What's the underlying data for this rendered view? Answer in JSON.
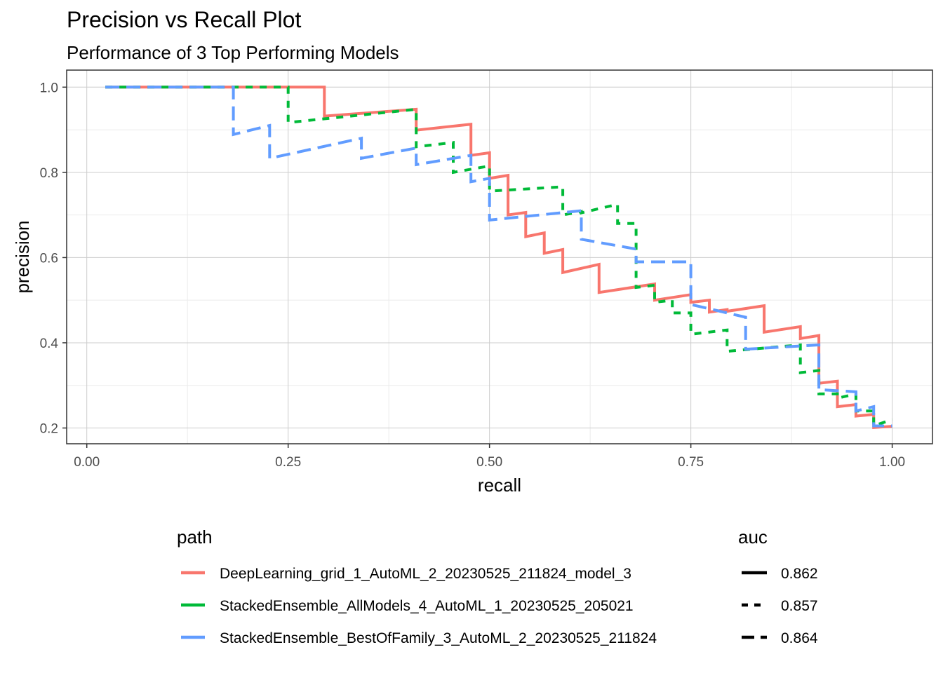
{
  "chart_data": {
    "type": "line",
    "title": "Precision vs Recall Plot",
    "subtitle": "Performance of 3 Top Performing Models",
    "xlabel": "recall",
    "ylabel": "precision",
    "xlim": [
      -0.025,
      1.05
    ],
    "ylim": [
      0.163,
      1.04
    ],
    "x_ticks": [
      0,
      0.25,
      0.5,
      0.75,
      1
    ],
    "x_tick_labels": [
      "0.00",
      "0.25",
      "0.50",
      "0.75",
      "1.00"
    ],
    "y_ticks": [
      0.2,
      0.4,
      0.6,
      0.8,
      1.0
    ],
    "y_tick_labels": [
      "0.2",
      "0.4",
      "0.6",
      "0.8",
      "1.0"
    ],
    "grid": true,
    "legend_position": "bottom",
    "legend_titles": {
      "color": "path",
      "linetype": "auc"
    },
    "series": [
      {
        "name": "DeepLearning_grid_1_AutoML_2_20230525_211824_model_3",
        "auc": "0.862",
        "color": "#F8766D",
        "linetype": "solid",
        "points": [
          [
            0.023,
            1.0
          ],
          [
            0.295,
            1.0
          ],
          [
            0.295,
            0.932
          ],
          [
            0.409,
            0.948
          ],
          [
            0.409,
            0.899
          ],
          [
            0.477,
            0.913
          ],
          [
            0.477,
            0.84
          ],
          [
            0.5,
            0.846
          ],
          [
            0.5,
            0.786
          ],
          [
            0.523,
            0.793
          ],
          [
            0.523,
            0.7
          ],
          [
            0.545,
            0.706
          ],
          [
            0.545,
            0.649
          ],
          [
            0.568,
            0.658
          ],
          [
            0.568,
            0.61
          ],
          [
            0.591,
            0.619
          ],
          [
            0.591,
            0.565
          ],
          [
            0.636,
            0.584
          ],
          [
            0.636,
            0.518
          ],
          [
            0.705,
            0.538
          ],
          [
            0.705,
            0.5
          ],
          [
            0.75,
            0.513
          ],
          [
            0.75,
            0.495
          ],
          [
            0.773,
            0.5
          ],
          [
            0.773,
            0.472
          ],
          [
            0.795,
            0.478
          ],
          [
            0.795,
            0.474
          ],
          [
            0.841,
            0.487
          ],
          [
            0.841,
            0.425
          ],
          [
            0.886,
            0.438
          ],
          [
            0.886,
            0.41
          ],
          [
            0.909,
            0.417
          ],
          [
            0.909,
            0.305
          ],
          [
            0.932,
            0.31
          ],
          [
            0.932,
            0.25
          ],
          [
            0.955,
            0.255
          ],
          [
            0.955,
            0.228
          ],
          [
            0.977,
            0.232
          ],
          [
            0.977,
            0.201
          ],
          [
            1.0,
            0.204
          ]
        ]
      },
      {
        "name": "StackedEnsemble_AllModels_4_AutoML_1_20230525_205021",
        "auc": "0.857",
        "color": "#00BA38",
        "linetype": "dashed",
        "points": [
          [
            0.023,
            1.0
          ],
          [
            0.25,
            1.0
          ],
          [
            0.25,
            0.917
          ],
          [
            0.409,
            0.948
          ],
          [
            0.409,
            0.86
          ],
          [
            0.455,
            0.87
          ],
          [
            0.455,
            0.8
          ],
          [
            0.5,
            0.815
          ],
          [
            0.5,
            0.756
          ],
          [
            0.591,
            0.766
          ],
          [
            0.591,
            0.7
          ],
          [
            0.614,
            0.708
          ],
          [
            0.614,
            0.705
          ],
          [
            0.659,
            0.725
          ],
          [
            0.659,
            0.68
          ],
          [
            0.682,
            0.68
          ],
          [
            0.682,
            0.53
          ],
          [
            0.705,
            0.535
          ],
          [
            0.705,
            0.495
          ],
          [
            0.727,
            0.5
          ],
          [
            0.727,
            0.47
          ],
          [
            0.75,
            0.47
          ],
          [
            0.75,
            0.42
          ],
          [
            0.795,
            0.43
          ],
          [
            0.795,
            0.38
          ],
          [
            0.886,
            0.395
          ],
          [
            0.886,
            0.33
          ],
          [
            0.909,
            0.335
          ],
          [
            0.909,
            0.28
          ],
          [
            0.932,
            0.28
          ],
          [
            0.932,
            0.27
          ],
          [
            0.955,
            0.28
          ],
          [
            0.955,
            0.24
          ],
          [
            0.977,
            0.24
          ],
          [
            0.977,
            0.205
          ],
          [
            1.0,
            0.22
          ]
        ]
      },
      {
        "name": "StackedEnsemble_BestOfFamily_3_AutoML_2_20230525_211824",
        "auc": "0.864",
        "color": "#619CFF",
        "linetype": "longdash",
        "points": [
          [
            0.023,
            1.0
          ],
          [
            0.182,
            1.0
          ],
          [
            0.182,
            0.889
          ],
          [
            0.227,
            0.91
          ],
          [
            0.227,
            0.833
          ],
          [
            0.341,
            0.88
          ],
          [
            0.341,
            0.833
          ],
          [
            0.409,
            0.857
          ],
          [
            0.409,
            0.818
          ],
          [
            0.477,
            0.84
          ],
          [
            0.477,
            0.778
          ],
          [
            0.5,
            0.786
          ],
          [
            0.5,
            0.688
          ],
          [
            0.614,
            0.71
          ],
          [
            0.614,
            0.643
          ],
          [
            0.682,
            0.62
          ],
          [
            0.682,
            0.59
          ],
          [
            0.75,
            0.59
          ],
          [
            0.75,
            0.49
          ],
          [
            0.818,
            0.46
          ],
          [
            0.818,
            0.385
          ],
          [
            0.909,
            0.395
          ],
          [
            0.909,
            0.29
          ],
          [
            0.955,
            0.285
          ],
          [
            0.955,
            0.24
          ],
          [
            0.977,
            0.25
          ],
          [
            0.977,
            0.205
          ],
          [
            1.0,
            0.205
          ]
        ]
      }
    ]
  }
}
